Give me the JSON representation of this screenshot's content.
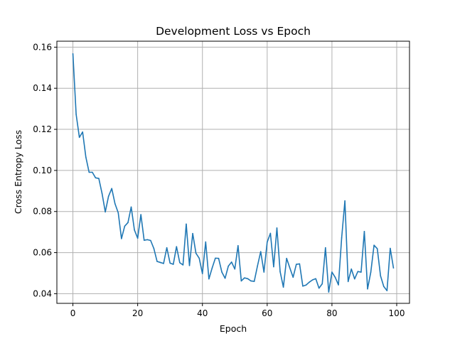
{
  "chart_data": {
    "type": "line",
    "title": "Development Loss vs Epoch",
    "xlabel": "Epoch",
    "ylabel": "Cross Entropy Loss",
    "xlim": [
      -4.95,
      103.95
    ],
    "ylim": [
      0.0353,
      0.1629
    ],
    "x_ticks": [
      0,
      20,
      40,
      60,
      80,
      100
    ],
    "x_tick_labels": [
      "0",
      "20",
      "40",
      "60",
      "80",
      "100"
    ],
    "y_ticks": [
      0.04,
      0.06,
      0.08,
      0.1,
      0.12,
      0.14,
      0.16
    ],
    "y_tick_labels": [
      "0.04",
      "0.06",
      "0.08",
      "0.10",
      "0.12",
      "0.14",
      "0.16"
    ],
    "grid": true,
    "series": [
      {
        "color": "#1f77b4",
        "x": [
          0,
          1,
          2,
          3,
          4,
          5,
          6,
          7,
          8,
          9,
          10,
          11,
          12,
          13,
          14,
          15,
          16,
          17,
          18,
          19,
          20,
          21,
          22,
          23,
          24,
          25,
          26,
          27,
          28,
          29,
          30,
          31,
          32,
          33,
          34,
          35,
          36,
          37,
          38,
          39,
          40,
          41,
          42,
          43,
          44,
          45,
          46,
          47,
          48,
          49,
          50,
          51,
          52,
          53,
          54,
          55,
          56,
          57,
          58,
          59,
          60,
          61,
          62,
          63,
          64,
          65,
          66,
          67,
          68,
          69,
          70,
          71,
          72,
          73,
          74,
          75,
          76,
          77,
          78,
          79,
          80,
          81,
          82,
          83,
          84,
          85,
          86,
          87,
          88,
          89,
          90,
          91,
          92,
          93,
          94,
          95,
          96,
          97,
          98,
          99
        ],
        "y": [
          0.1568,
          0.1273,
          0.1161,
          0.1187,
          0.1065,
          0.0991,
          0.0991,
          0.0964,
          0.0961,
          0.0888,
          0.0798,
          0.0874,
          0.0912,
          0.0838,
          0.0794,
          0.0668,
          0.0729,
          0.0746,
          0.0822,
          0.071,
          0.067,
          0.0785,
          0.066,
          0.0663,
          0.0659,
          0.062,
          0.0557,
          0.0552,
          0.0547,
          0.0624,
          0.0549,
          0.0543,
          0.0629,
          0.0551,
          0.054,
          0.0739,
          0.0537,
          0.0693,
          0.0597,
          0.0573,
          0.0498,
          0.0652,
          0.0472,
          0.0525,
          0.0573,
          0.0572,
          0.0505,
          0.0475,
          0.0534,
          0.0554,
          0.052,
          0.0634,
          0.0462,
          0.0477,
          0.0473,
          0.0462,
          0.046,
          0.0535,
          0.0605,
          0.0505,
          0.0651,
          0.0694,
          0.0531,
          0.072,
          0.0507,
          0.0432,
          0.0572,
          0.0525,
          0.048,
          0.0543,
          0.0545,
          0.0437,
          0.0442,
          0.0456,
          0.0467,
          0.0473,
          0.0427,
          0.0448,
          0.0624,
          0.0408,
          0.0505,
          0.048,
          0.0443,
          0.0672,
          0.0852,
          0.0459,
          0.052,
          0.0472,
          0.0508,
          0.0505,
          0.0703,
          0.0423,
          0.0505,
          0.0636,
          0.0619,
          0.0487,
          0.0435,
          0.0415,
          0.0621,
          0.0525
        ]
      }
    ]
  }
}
